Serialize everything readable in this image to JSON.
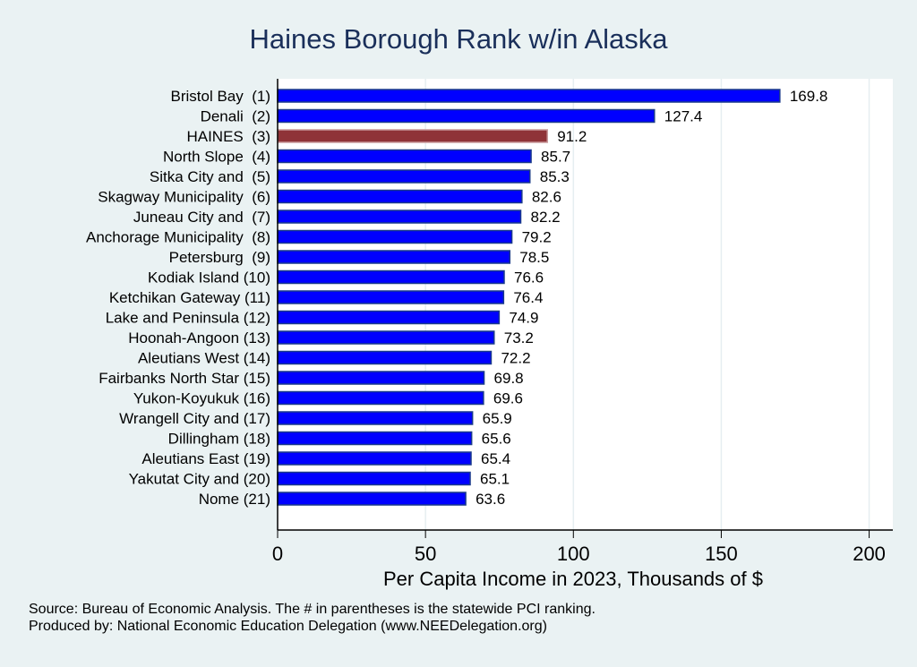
{
  "chart_data": {
    "type": "bar",
    "orientation": "horizontal",
    "title": "Haines Borough Rank w/in Alaska",
    "xlabel": "Per Capita Income in 2023, Thousands of $",
    "ylabel": "",
    "xlim": [
      0,
      208
    ],
    "xticks": [
      0,
      50,
      100,
      150,
      200
    ],
    "grid": "vertical",
    "categories": [
      "Bristol Bay  (1)",
      "Denali  (2)",
      "HAINES  (3)",
      "North Slope  (4)",
      "Sitka City and  (5)",
      "Skagway Municipality  (6)",
      "Juneau City and  (7)",
      "Anchorage Municipality  (8)",
      "Petersburg  (9)",
      "Kodiak Island (10)",
      "Ketchikan Gateway (11)",
      "Lake and Peninsula (12)",
      "Hoonah-Angoon (13)",
      "Aleutians West (14)",
      "Fairbanks North Star (15)",
      "Yukon-Koyukuk (16)",
      "Wrangell City and (17)",
      "Dillingham (18)",
      "Aleutians East (19)",
      "Yakutat City and (20)",
      "Nome (21)"
    ],
    "values": [
      169.8,
      127.4,
      91.2,
      85.7,
      85.3,
      82.6,
      82.2,
      79.2,
      78.5,
      76.6,
      76.4,
      74.9,
      73.2,
      72.2,
      69.8,
      69.6,
      65.9,
      65.6,
      65.4,
      65.1,
      63.6
    ],
    "value_labels": [
      "169.8",
      "127.4",
      "91.2",
      "85.7",
      "85.3",
      "82.6",
      "82.2",
      "79.2",
      "78.5",
      "76.6",
      "76.4",
      "74.9",
      "73.2",
      "72.2",
      "69.8",
      "69.6",
      "65.9",
      "65.6",
      "65.4",
      "65.1",
      "63.6"
    ],
    "highlight_index": 2,
    "colors": {
      "bar": "#0000ff",
      "bar_edge": "#1a3a8a",
      "highlight": "#8f3338",
      "background": "#eaf2f3",
      "plot_background": "#ffffff",
      "title": "#1a2f5a"
    }
  },
  "notes": {
    "source": "Source: Bureau of Economic Analysis. The # in parentheses is the statewide PCI ranking.",
    "produced": "Produced by: National Economic Education Delegation (www.NEEDelegation.org)"
  }
}
